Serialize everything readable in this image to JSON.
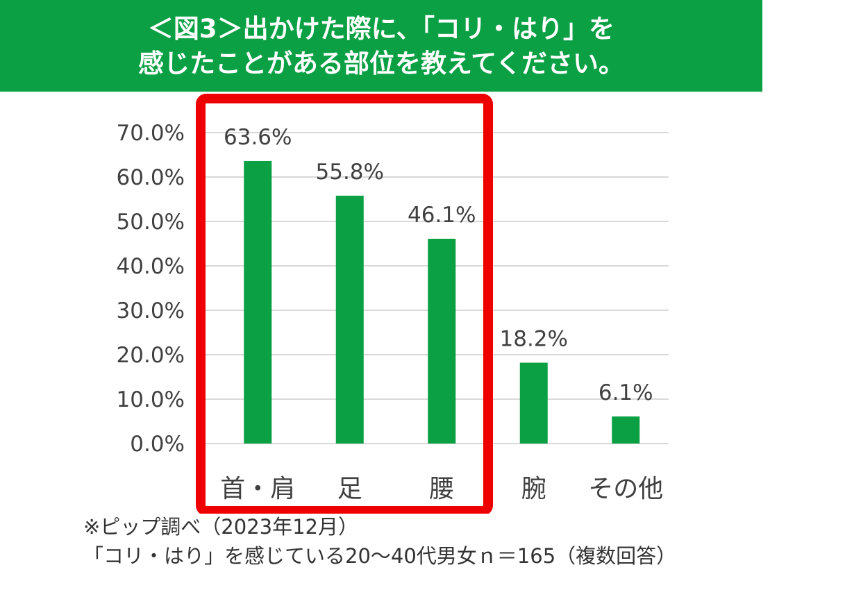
{
  "title": {
    "line1": "＜図3＞出かけた際に、「コリ・はり」を",
    "line2": "感じたことがある部位を教えてください。"
  },
  "colors": {
    "banner": "#0aa043",
    "bar": "#0aa043",
    "highlight_box": "#ee0000",
    "grid": "#d9d9d9",
    "text": "#404040"
  },
  "chart_data": {
    "type": "bar",
    "categories": [
      "首・肩",
      "足",
      "腰",
      "腕",
      "その他"
    ],
    "values": [
      63.6,
      55.8,
      46.1,
      18.2,
      6.1
    ],
    "data_labels": [
      "63.6%",
      "55.8%",
      "46.1%",
      "18.2%",
      "6.1%"
    ],
    "y_tick_labels": [
      "0.0%",
      "10.0%",
      "20.0%",
      "30.0%",
      "40.0%",
      "50.0%",
      "60.0%",
      "70.0%"
    ],
    "ylim": [
      0,
      70
    ],
    "grid": true,
    "legend": "none",
    "highlighted_categories": [
      "首・肩",
      "足",
      "腰"
    ]
  },
  "notes": {
    "line1": "※ピップ調べ（2023年12月）",
    "line2": "「コリ・はり」を感じている20～40代男女ｎ＝165（複数回答）"
  }
}
